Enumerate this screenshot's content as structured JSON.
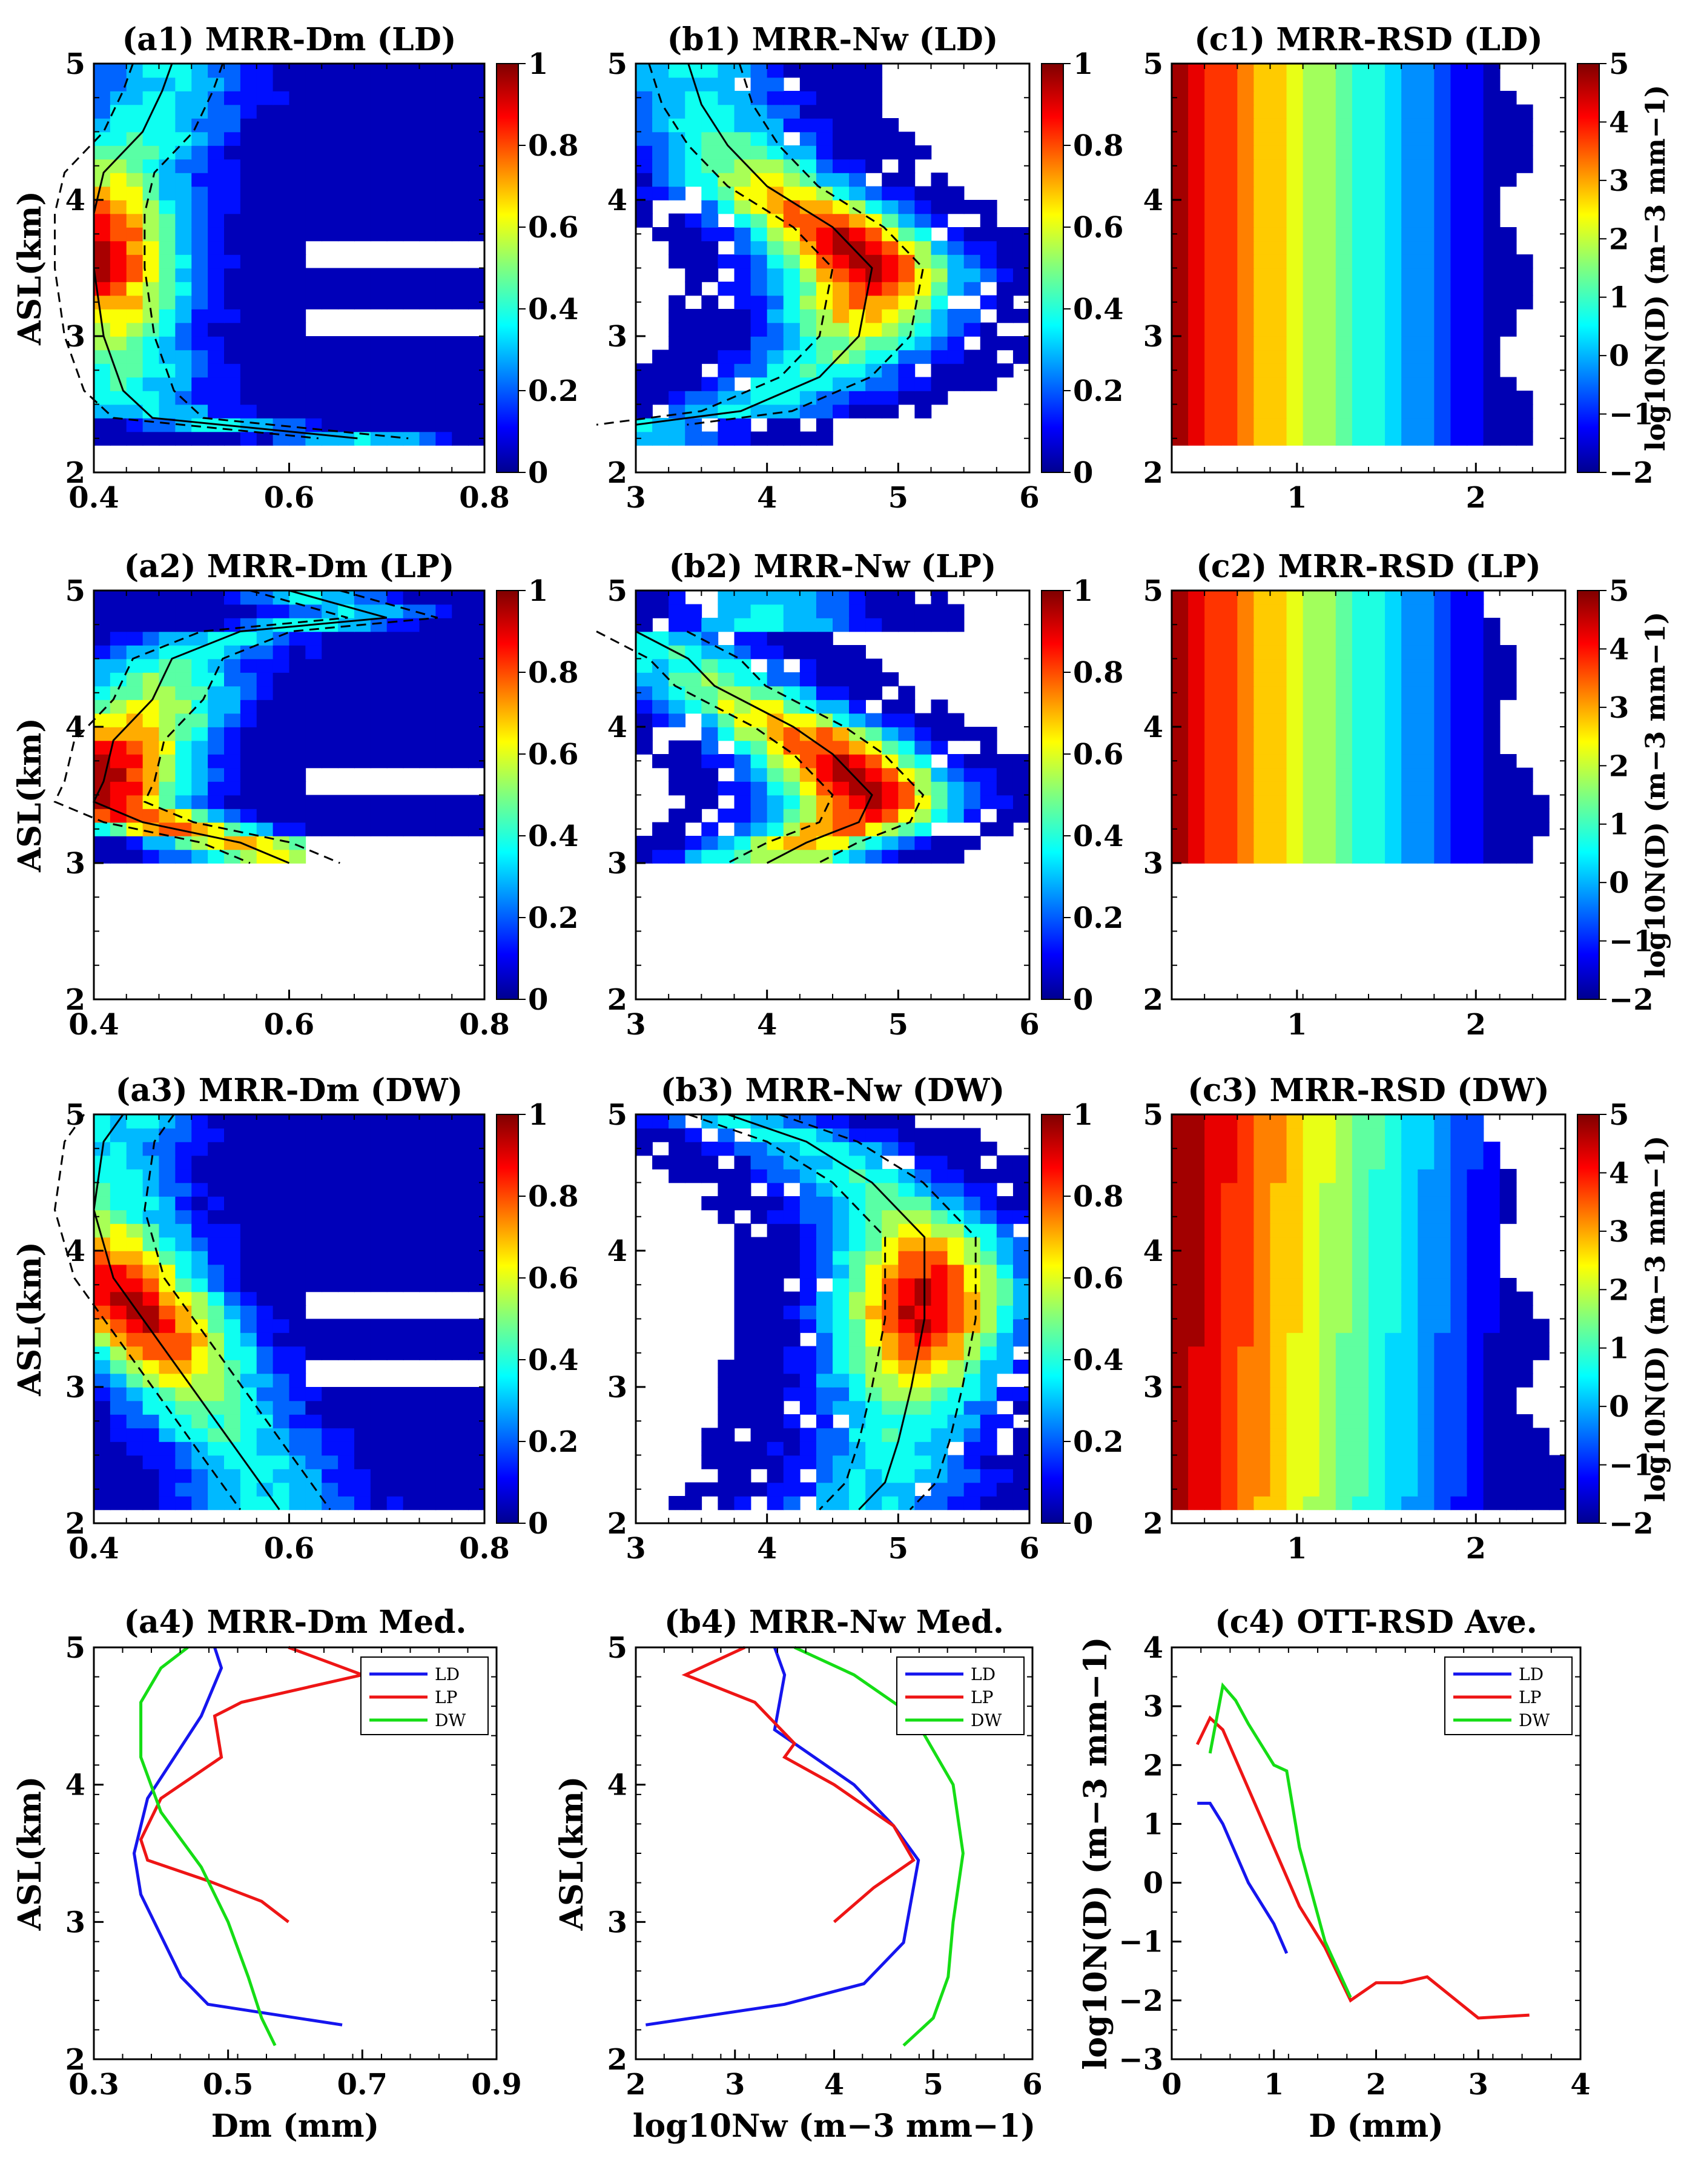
{
  "figure": {
    "y_axis_label": "ASL(km)",
    "colorbar_ticks_freq": [
      "1",
      "0.8",
      "0.6",
      "0.4",
      "0.2",
      "0"
    ],
    "colorbar_ticks_rsd": [
      "5",
      "4",
      "3",
      "2",
      "1",
      "0",
      "−1",
      "−2"
    ],
    "colorbar_label_rsd": "log10N(D) (m−3 mm−1)",
    "legend_labels": [
      "LD",
      "LP",
      "DW"
    ],
    "line_colors": {
      "LD": "#1515ee",
      "LP": "#ee1515",
      "DW": "#15dd15"
    }
  },
  "chart_data": [
    {
      "id": "a1",
      "type": "heatmap",
      "title": "(a1) MRR-Dm (LD)",
      "xlim": [
        0.4,
        0.8
      ],
      "ylim": [
        2,
        5
      ],
      "xticks": [
        "0.4",
        "0.6",
        "0.8"
      ],
      "yticks": [
        "2",
        "3",
        "4",
        "5"
      ],
      "ylabel": "ASL(km)",
      "data_top_km": 5,
      "data_bottom_km": 2.25,
      "median_line": {
        "x": [
          0.48,
          0.47,
          0.45,
          0.41,
          0.4,
          0.4,
          0.41,
          0.43,
          0.46,
          0.6,
          0.67
        ],
        "y": [
          5.0,
          4.8,
          4.5,
          4.2,
          3.9,
          3.5,
          3.0,
          2.6,
          2.4,
          2.3,
          2.25
        ]
      }
    },
    {
      "id": "b1",
      "type": "heatmap",
      "title": "(b1) MRR-Nw (LD)",
      "xlim": [
        3,
        6
      ],
      "ylim": [
        2,
        5
      ],
      "xticks": [
        "3",
        "4",
        "5",
        "6"
      ],
      "yticks": [
        "2",
        "3",
        "4",
        "5"
      ],
      "data_top_km": 5,
      "data_bottom_km": 2.25,
      "median_line": {
        "x": [
          3.4,
          3.5,
          3.7,
          4.0,
          4.5,
          4.8,
          4.7,
          4.4,
          3.8,
          3.0
        ],
        "y": [
          5.0,
          4.7,
          4.4,
          4.1,
          3.8,
          3.5,
          3.0,
          2.7,
          2.45,
          2.35
        ]
      }
    },
    {
      "id": "c1",
      "type": "heatmap",
      "title": "(c1) MRR-RSD (LD)",
      "xlim": [
        0.3,
        2.5
      ],
      "ylim": [
        2,
        5
      ],
      "xticks": [
        "1",
        "2"
      ],
      "yticks": [
        "2",
        "3",
        "4",
        "5"
      ],
      "data_top_km": 5,
      "data_bottom_km": 2.25
    },
    {
      "id": "a2",
      "type": "heatmap",
      "title": "(a2) MRR-Dm (LP)",
      "xlim": [
        0.4,
        0.8
      ],
      "ylim": [
        2,
        5
      ],
      "xticks": [
        "0.4",
        "0.6",
        "0.8"
      ],
      "yticks": [
        "2",
        "3",
        "4",
        "5"
      ],
      "ylabel": "ASL(km)",
      "data_top_km": 5,
      "data_bottom_km": 3,
      "median_line": {
        "x": [
          0.6,
          0.7,
          0.55,
          0.48,
          0.46,
          0.42,
          0.41,
          0.4,
          0.45,
          0.55,
          0.6
        ],
        "y": [
          5.0,
          4.8,
          4.7,
          4.5,
          4.2,
          3.9,
          3.6,
          3.45,
          3.3,
          3.15,
          3.0
        ]
      }
    },
    {
      "id": "b2",
      "type": "heatmap",
      "title": "(b2) MRR-Nw (LP)",
      "xlim": [
        3,
        6
      ],
      "ylim": [
        2,
        5
      ],
      "xticks": [
        "3",
        "4",
        "5",
        "6"
      ],
      "yticks": [
        "2",
        "3",
        "4",
        "5"
      ],
      "data_top_km": 5,
      "data_bottom_km": 3,
      "median_line": {
        "x": [
          3.0,
          3.4,
          3.6,
          3.8,
          4.2,
          4.5,
          4.8,
          4.7,
          4.3,
          4.0
        ],
        "y": [
          4.7,
          4.5,
          4.3,
          4.2,
          4.0,
          3.8,
          3.5,
          3.3,
          3.15,
          3.0
        ]
      }
    },
    {
      "id": "c2",
      "type": "heatmap",
      "title": "(c2) MRR-RSD (LP)",
      "xlim": [
        0.3,
        2.5
      ],
      "ylim": [
        2,
        5
      ],
      "xticks": [
        "1",
        "2"
      ],
      "yticks": [
        "2",
        "3",
        "4",
        "5"
      ],
      "data_top_km": 5,
      "data_bottom_km": 3
    },
    {
      "id": "a3",
      "type": "heatmap",
      "title": "(a3) MRR-Dm (DW)",
      "xlim": [
        0.4,
        0.8
      ],
      "ylim": [
        2,
        5
      ],
      "xticks": [
        "0.4",
        "0.6",
        "0.8"
      ],
      "yticks": [
        "2",
        "3",
        "4",
        "5"
      ],
      "ylabel": "ASL(km)",
      "data_top_km": 5,
      "data_bottom_km": 2.1,
      "median_line": {
        "x": [
          0.43,
          0.41,
          0.4,
          0.42,
          0.46,
          0.5,
          0.53,
          0.56,
          0.59
        ],
        "y": [
          5.0,
          4.8,
          4.3,
          3.8,
          3.4,
          3.0,
          2.7,
          2.4,
          2.1
        ]
      }
    },
    {
      "id": "b3",
      "type": "heatmap",
      "title": "(b3) MRR-Nw (DW)",
      "xlim": [
        3,
        6
      ],
      "ylim": [
        2,
        5
      ],
      "xticks": [
        "3",
        "4",
        "5",
        "6"
      ],
      "yticks": [
        "2",
        "3",
        "4",
        "5"
      ],
      "data_top_km": 5,
      "data_bottom_km": 2.1,
      "median_line": {
        "x": [
          3.7,
          4.3,
          4.8,
          5.2,
          5.2,
          5.1,
          5.0,
          4.9,
          4.7
        ],
        "y": [
          5.0,
          4.8,
          4.5,
          4.1,
          3.5,
          3.0,
          2.6,
          2.3,
          2.1
        ]
      }
    },
    {
      "id": "c3",
      "type": "heatmap",
      "title": "(c3) MRR-RSD (DW)",
      "xlim": [
        0.3,
        2.5
      ],
      "ylim": [
        2,
        5
      ],
      "xticks": [
        "1",
        "2"
      ],
      "yticks": [
        "2",
        "3",
        "4",
        "5"
      ],
      "data_top_km": 5,
      "data_bottom_km": 2.1
    },
    {
      "id": "a4",
      "type": "line",
      "title": "(a4) MRR-Dm Med.",
      "xlabel": "Dm (mm)",
      "ylabel": "ASL(km)",
      "xlim": [
        0.3,
        0.9
      ],
      "ylim": [
        2,
        5
      ],
      "xticks": [
        "0.3",
        "0.5",
        "0.7",
        "0.9"
      ],
      "yticks": [
        "2",
        "3",
        "4",
        "5"
      ],
      "series": [
        {
          "name": "LD",
          "x": [
            0.48,
            0.49,
            0.46,
            0.42,
            0.38,
            0.36,
            0.37,
            0.4,
            0.43,
            0.47,
            0.67
          ],
          "y": [
            5.0,
            4.85,
            4.5,
            4.2,
            3.9,
            3.5,
            3.2,
            2.9,
            2.6,
            2.4,
            2.25
          ]
        },
        {
          "name": "LP",
          "x": [
            0.59,
            0.7,
            0.52,
            0.48,
            0.49,
            0.4,
            0.37,
            0.38,
            0.47,
            0.55,
            0.59
          ],
          "y": [
            5.0,
            4.8,
            4.6,
            4.5,
            4.2,
            3.9,
            3.6,
            3.45,
            3.3,
            3.15,
            3.0
          ]
        },
        {
          "name": "DW",
          "x": [
            0.44,
            0.4,
            0.37,
            0.37,
            0.4,
            0.46,
            0.5,
            0.53,
            0.55,
            0.57
          ],
          "y": [
            5.0,
            4.85,
            4.6,
            4.2,
            3.8,
            3.4,
            3.0,
            2.6,
            2.3,
            2.1
          ]
        }
      ]
    },
    {
      "id": "b4",
      "type": "line",
      "title": "(b4) MRR-Nw Med.",
      "xlabel": "log10Nw (m−3 mm−1)",
      "ylabel": "ASL(km)",
      "xlim": [
        2,
        6
      ],
      "ylim": [
        2,
        5
      ],
      "xticks": [
        "2",
        "3",
        "4",
        "5",
        "6"
      ],
      "yticks": [
        "2",
        "3",
        "4",
        "5"
      ],
      "series": [
        {
          "name": "LD",
          "x": [
            3.4,
            3.5,
            3.4,
            3.8,
            4.2,
            4.6,
            4.85,
            4.7,
            4.3,
            3.5,
            2.1
          ],
          "y": [
            5.0,
            4.8,
            4.4,
            4.2,
            4.0,
            3.7,
            3.45,
            2.85,
            2.55,
            2.4,
            2.25
          ]
        },
        {
          "name": "LP",
          "x": [
            3.1,
            2.5,
            3.2,
            3.6,
            3.5,
            4.0,
            4.6,
            4.8,
            4.4,
            4.0
          ],
          "y": [
            5.0,
            4.8,
            4.6,
            4.3,
            4.2,
            4.0,
            3.7,
            3.45,
            3.25,
            3.0
          ]
        },
        {
          "name": "DW",
          "x": [
            3.6,
            4.2,
            4.8,
            5.2,
            5.3,
            5.2,
            5.15,
            5.0,
            4.7
          ],
          "y": [
            5.0,
            4.8,
            4.5,
            4.0,
            3.5,
            3.0,
            2.6,
            2.3,
            2.1
          ]
        }
      ]
    },
    {
      "id": "c4",
      "type": "line",
      "title": "(c4) OTT-RSD Ave.",
      "xlabel": "D (mm)",
      "ylabel": "log10N(D) (m−3 mm−1)",
      "xlim": [
        0,
        4
      ],
      "ylim": [
        -3,
        4
      ],
      "xticks": [
        "0",
        "1",
        "2",
        "3",
        "4"
      ],
      "yticks": [
        "−3",
        "−2",
        "−1",
        "0",
        "1",
        "2",
        "3",
        "4"
      ],
      "series": [
        {
          "name": "LD",
          "x": [
            0.25,
            0.375,
            0.5,
            0.75,
            1.0,
            1.125
          ],
          "y": [
            1.35,
            1.35,
            1.0,
            0.0,
            -0.7,
            -1.2
          ]
        },
        {
          "name": "LP",
          "x": [
            0.25,
            0.375,
            0.5,
            0.75,
            1.0,
            1.25,
            1.5,
            1.75,
            2.0,
            2.25,
            2.5,
            3.0,
            3.5
          ],
          "y": [
            2.35,
            2.8,
            2.6,
            1.6,
            0.6,
            -0.4,
            -1.1,
            -2.0,
            -1.7,
            -1.7,
            -1.6,
            -2.3,
            -2.25
          ]
        },
        {
          "name": "DW",
          "x": [
            0.375,
            0.5,
            0.625,
            0.75,
            1.0,
            1.125,
            1.25,
            1.5,
            1.75
          ],
          "y": [
            2.2,
            3.35,
            3.1,
            2.7,
            2.0,
            1.9,
            0.6,
            -1.0,
            -1.95
          ]
        }
      ]
    }
  ]
}
